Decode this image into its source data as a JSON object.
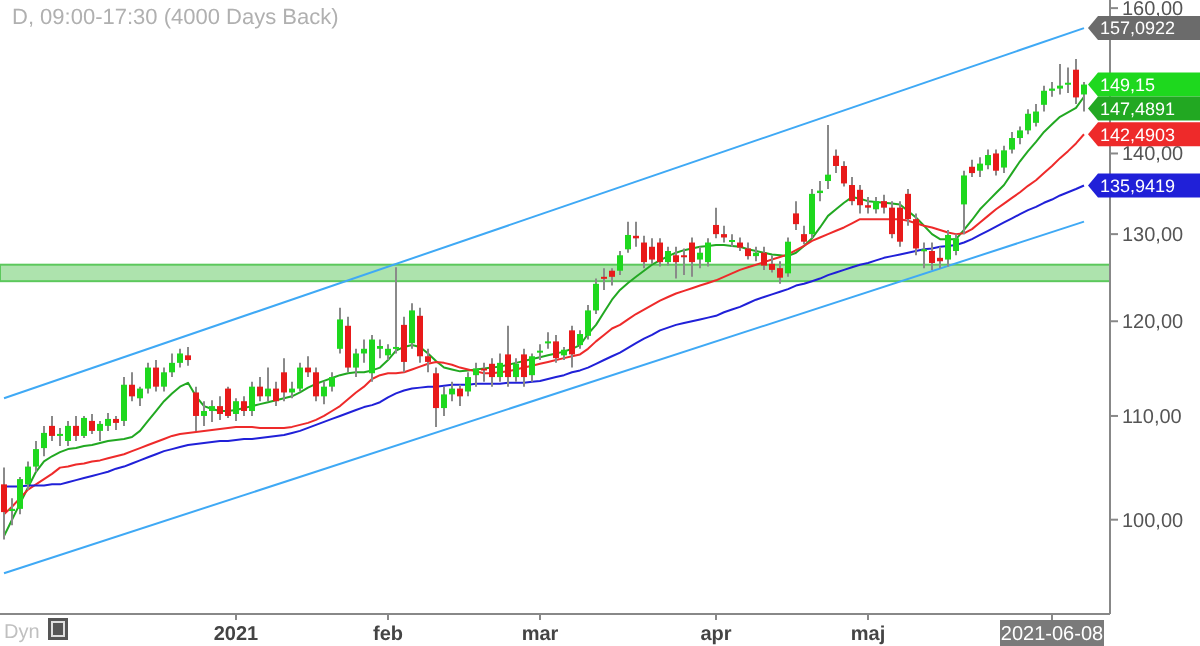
{
  "chart_data": {
    "type": "candlestick",
    "title": "D, 09:00-17:30 (4000 Days Back)",
    "categories": [
      null,
      null,
      null,
      null,
      null,
      null,
      null,
      null,
      null,
      null,
      null,
      null,
      null,
      null,
      null,
      null,
      null,
      null,
      null,
      null,
      null,
      null,
      null,
      null,
      null,
      null,
      null,
      null,
      null,
      "2021",
      null,
      null,
      null,
      null,
      null,
      null,
      null,
      null,
      null,
      null,
      null,
      null,
      null,
      null,
      null,
      null,
      null,
      null,
      "feb",
      null,
      null,
      null,
      null,
      null,
      null,
      null,
      null,
      null,
      null,
      null,
      null,
      null,
      null,
      null,
      null,
      null,
      null,
      "mar",
      null,
      null,
      null,
      null,
      null,
      null,
      null,
      null,
      null,
      null,
      null,
      null,
      null,
      null,
      null,
      null,
      null,
      null,
      null,
      null,
      null,
      "apr",
      null,
      null,
      null,
      null,
      null,
      null,
      null,
      null,
      null,
      null,
      null,
      null,
      null,
      null,
      null,
      null,
      null,
      null,
      "maj",
      null,
      null,
      null,
      null,
      null,
      null,
      null,
      null,
      null,
      null,
      null,
      null,
      null,
      null,
      null,
      null,
      null,
      null,
      null,
      null,
      null,
      null,
      "2021-06-08",
      null,
      null,
      null,
      null
    ],
    "ohlc": [
      [
        103.3,
        104.9,
        98.2,
        100.7
      ],
      [
        100.8,
        102.0,
        99.5,
        101.0
      ],
      [
        101.0,
        104.0,
        100.5,
        103.8
      ],
      [
        103.3,
        105.5,
        102.8,
        105.0
      ],
      [
        105.0,
        107.5,
        104.5,
        106.7
      ],
      [
        106.8,
        109.0,
        106.0,
        108.3
      ],
      [
        109.0,
        110.0,
        107.5,
        108.0
      ],
      [
        108.0,
        108.8,
        107.0,
        108.2
      ],
      [
        107.5,
        109.5,
        107.0,
        109.0
      ],
      [
        109.0,
        110.0,
        107.5,
        108.0
      ],
      [
        108.0,
        110.0,
        107.8,
        109.8
      ],
      [
        109.5,
        110.2,
        108.2,
        108.5
      ],
      [
        108.5,
        109.5,
        107.5,
        109.2
      ],
      [
        109.0,
        110.3,
        108.5,
        109.7
      ],
      [
        109.7,
        110.0,
        108.6,
        109.3
      ],
      [
        109.5,
        114.0,
        109.0,
        113.2
      ],
      [
        113.2,
        114.5,
        111.5,
        112.0
      ],
      [
        111.8,
        113.0,
        111.0,
        112.8
      ],
      [
        112.8,
        115.5,
        112.3,
        115.0
      ],
      [
        115.0,
        115.8,
        112.5,
        113.0
      ],
      [
        113.0,
        115.0,
        112.5,
        114.5
      ],
      [
        114.5,
        116.5,
        114.0,
        115.5
      ],
      [
        115.5,
        117.0,
        115.0,
        116.5
      ],
      [
        116.3,
        117.2,
        115.2,
        115.8
      ],
      [
        112.4,
        113.0,
        108.5,
        110.0
      ],
      [
        110.0,
        111.5,
        109.0,
        110.5
      ],
      [
        110.5,
        111.6,
        109.4,
        111.0
      ],
      [
        111.0,
        112.0,
        109.6,
        110.2
      ],
      [
        112.8,
        113.0,
        109.8,
        110.0
      ],
      [
        110.2,
        111.8,
        109.5,
        111.5
      ],
      [
        111.5,
        112.0,
        110.0,
        110.5
      ],
      [
        110.5,
        113.5,
        110.0,
        113.0
      ],
      [
        113.0,
        114.0,
        111.5,
        112.0
      ],
      [
        112.0,
        115.0,
        111.5,
        112.8
      ],
      [
        112.8,
        113.5,
        111.0,
        111.5
      ],
      [
        114.5,
        116.0,
        111.5,
        112.4
      ],
      [
        112.4,
        113.5,
        111.8,
        112.8
      ],
      [
        112.8,
        115.5,
        112.5,
        115.0
      ],
      [
        115.0,
        116.2,
        114.0,
        114.5
      ],
      [
        114.5,
        115.0,
        111.5,
        112.0
      ],
      [
        112.0,
        113.5,
        111.2,
        113.0
      ],
      [
        113.0,
        114.5,
        112.5,
        114.0
      ],
      [
        117.0,
        121.5,
        116.5,
        120.2
      ],
      [
        119.5,
        120.5,
        114.5,
        115.0
      ],
      [
        115.0,
        117.0,
        114.0,
        116.5
      ],
      [
        116.5,
        118.0,
        115.5,
        117.0
      ],
      [
        114.4,
        118.5,
        113.5,
        118.0
      ],
      [
        117.0,
        118.0,
        116.0,
        117.3
      ],
      [
        116.3,
        117.5,
        115.8,
        117.0
      ],
      [
        117.0,
        126.1,
        116.5,
        117.2
      ],
      [
        119.6,
        120.5,
        114.5,
        115.6
      ],
      [
        117.6,
        122.0,
        117.0,
        121.2
      ],
      [
        120.6,
        121.5,
        115.5,
        116.2
      ],
      [
        116.2,
        117.0,
        114.5,
        115.6
      ],
      [
        114.4,
        115.0,
        108.9,
        110.8
      ],
      [
        110.8,
        113.0,
        110.0,
        112.2
      ],
      [
        112.2,
        113.5,
        111.5,
        112.8
      ],
      [
        112.8,
        113.2,
        111.0,
        112.0
      ],
      [
        112.5,
        114.5,
        112.0,
        114.0
      ],
      [
        114.2,
        115.5,
        113.0,
        114.9
      ],
      [
        114.9,
        115.5,
        113.5,
        114.8
      ],
      [
        115.4,
        116.0,
        113.0,
        114.0
      ],
      [
        114.0,
        116.5,
        113.5,
        115.5
      ],
      [
        116.4,
        119.5,
        113.0,
        114.0
      ],
      [
        114.0,
        116.0,
        113.5,
        115.4
      ],
      [
        116.4,
        117.0,
        113.0,
        114.0
      ],
      [
        114.2,
        116.5,
        113.5,
        116.2
      ],
      [
        116.6,
        117.5,
        115.8,
        116.8
      ],
      [
        117.6,
        118.8,
        117.0,
        117.8
      ],
      [
        117.8,
        118.5,
        115.5,
        116.0
      ],
      [
        116.3,
        117.2,
        115.8,
        116.9
      ],
      [
        119.0,
        119.5,
        115.0,
        116.4
      ],
      [
        117.4,
        119.0,
        117.0,
        118.6
      ],
      [
        118.4,
        121.8,
        118.0,
        121.2
      ],
      [
        121.2,
        124.8,
        120.8,
        124.2
      ],
      [
        125.0,
        126.0,
        123.5,
        124.8
      ],
      [
        125.7,
        126.0,
        124.0,
        125.0
      ],
      [
        125.7,
        128.0,
        125.2,
        127.5
      ],
      [
        128.2,
        131.5,
        127.8,
        129.9
      ],
      [
        129.8,
        131.5,
        128.5,
        129.5
      ],
      [
        129.0,
        129.8,
        126.0,
        126.7
      ],
      [
        128.5,
        129.5,
        126.5,
        127.0
      ],
      [
        129.0,
        129.5,
        126.2,
        126.7
      ],
      [
        126.7,
        128.5,
        126.3,
        128.0
      ],
      [
        127.5,
        128.5,
        124.8,
        126.7
      ],
      [
        127.5,
        128.3,
        125.2,
        127.4
      ],
      [
        129.0,
        129.6,
        125.0,
        126.7
      ],
      [
        127.0,
        128.5,
        126.0,
        127.8
      ],
      [
        126.7,
        129.5,
        126.2,
        129.0
      ],
      [
        131.1,
        133.2,
        129.5,
        130.0
      ],
      [
        130.0,
        131.0,
        129.0,
        129.6
      ],
      [
        129.2,
        130.0,
        128.5,
        129.3
      ],
      [
        129.0,
        129.6,
        128.0,
        128.4
      ],
      [
        128.3,
        129.0,
        127.0,
        127.4
      ],
      [
        127.4,
        128.5,
        126.8,
        127.8
      ],
      [
        127.8,
        128.5,
        125.8,
        126.3
      ],
      [
        126.5,
        127.5,
        125.5,
        125.8
      ],
      [
        126.0,
        126.8,
        124.2,
        124.9
      ],
      [
        125.4,
        129.6,
        125.0,
        129.1
      ],
      [
        132.5,
        134.0,
        130.5,
        131.2
      ],
      [
        130.0,
        131.0,
        128.8,
        129.1
      ],
      [
        130.0,
        135.5,
        129.5,
        134.9
      ],
      [
        135.0,
        136.5,
        134.0,
        135.3
      ],
      [
        136.5,
        143.7,
        135.5,
        137.3
      ],
      [
        139.7,
        140.5,
        137.5,
        138.4
      ],
      [
        138.4,
        139.0,
        135.8,
        136.2
      ],
      [
        136.0,
        137.0,
        133.5,
        134.0
      ],
      [
        135.4,
        136.0,
        132.5,
        133.5
      ],
      [
        133.5,
        134.5,
        132.5,
        133.2
      ],
      [
        133.0,
        134.5,
        132.5,
        134.0
      ],
      [
        134.0,
        134.8,
        132.5,
        133.2
      ],
      [
        133.2,
        134.0,
        129.5,
        130.0
      ],
      [
        133.2,
        134.0,
        128.5,
        129.1
      ],
      [
        134.9,
        135.5,
        131.0,
        131.8
      ],
      [
        131.8,
        132.5,
        127.5,
        128.3
      ],
      [
        128.0,
        129.0,
        126.0,
        128.2
      ],
      [
        128.0,
        129.0,
        125.8,
        126.6
      ],
      [
        127.2,
        128.5,
        126.0,
        126.8
      ],
      [
        127.0,
        130.5,
        126.2,
        129.9
      ],
      [
        128.0,
        130.0,
        127.5,
        129.5
      ],
      [
        133.6,
        137.8,
        130.0,
        137.2
      ],
      [
        138.3,
        139.2,
        137.0,
        137.5
      ],
      [
        137.8,
        139.5,
        137.0,
        138.7
      ],
      [
        138.5,
        140.5,
        138.0,
        139.8
      ],
      [
        140.0,
        140.5,
        137.2,
        137.8
      ],
      [
        138.2,
        141.0,
        137.5,
        140.4
      ],
      [
        140.5,
        142.8,
        140.0,
        142.0
      ],
      [
        142.0,
        143.5,
        141.2,
        143.0
      ],
      [
        143.0,
        145.8,
        142.5,
        145.2
      ],
      [
        144.0,
        146.5,
        143.5,
        145.5
      ],
      [
        146.4,
        149.0,
        145.5,
        148.3
      ],
      [
        148.3,
        149.5,
        147.5,
        148.6
      ],
      [
        148.6,
        152.0,
        147.8,
        149.0
      ],
      [
        149.2,
        151.5,
        148.0,
        149.4
      ],
      [
        151.2,
        152.7,
        146.5,
        147.4
      ],
      [
        147.8,
        149.5,
        145.5,
        149.15
      ]
    ],
    "value_labels": [
      null,
      null,
      null,
      null,
      null,
      null,
      null,
      null,
      null,
      null,
      null,
      null,
      null,
      null,
      null,
      null,
      null,
      null,
      null,
      null,
      null,
      null,
      null,
      null,
      null,
      null,
      null,
      null,
      null,
      null,
      null,
      null,
      null,
      null,
      null,
      null,
      null,
      null,
      null,
      null,
      null,
      null,
      null,
      null,
      null,
      null,
      null,
      null,
      null,
      null,
      null,
      null,
      null,
      null,
      null,
      null,
      null,
      null,
      null,
      null,
      null,
      null,
      null,
      null,
      null,
      null,
      null,
      null,
      null,
      null,
      null,
      null,
      null,
      null,
      null,
      null,
      null,
      null,
      null,
      null,
      null,
      null,
      null,
      null,
      null,
      null,
      null,
      null,
      null,
      null,
      null,
      null,
      null,
      null,
      null,
      null,
      null,
      null,
      null,
      null,
      null,
      null,
      null,
      null,
      null,
      null,
      null,
      null,
      null,
      null,
      null,
      null,
      null,
      null,
      null,
      null,
      null,
      null,
      null,
      null,
      null,
      null,
      null,
      null,
      null,
      null,
      null,
      null,
      null,
      null,
      null,
      null,
      null,
      null,
      null,
      "149,15"
    ],
    "series": [
      {
        "type": "line",
        "color": "#22a822",
        "values": [
          98.5,
          100.0,
          101.5,
          103.0,
          104.5,
          105.5,
          106.0,
          106.4,
          106.7,
          106.8,
          107.0,
          107.1,
          107.3,
          107.5,
          107.6,
          107.7,
          107.9,
          108.5,
          109.5,
          110.5,
          111.5,
          112.3,
          113.0,
          113.4,
          112.0,
          111.0,
          110.7,
          110.5,
          110.5,
          110.6,
          110.8,
          111.0,
          111.2,
          111.4,
          111.6,
          111.8,
          112.0,
          112.4,
          112.9,
          113.3,
          113.6,
          113.9,
          114.2,
          114.4,
          114.5,
          114.5,
          114.7,
          115.0,
          115.8,
          116.8,
          117.2,
          117.4,
          117.2,
          116.5,
          115.7,
          115.0,
          114.8,
          114.6,
          114.7,
          114.8,
          114.9,
          115.0,
          115.1,
          115.3,
          115.5,
          115.7,
          115.9,
          116.1,
          116.3,
          116.5,
          116.7,
          117.0,
          117.4,
          118.6,
          119.6,
          121.0,
          122.4,
          123.5,
          124.3,
          125.0,
          125.7,
          126.4,
          126.9,
          127.4,
          127.8,
          128.1,
          128.3,
          128.5,
          128.6,
          128.7,
          128.7,
          128.6,
          128.5,
          128.2,
          128.0,
          127.8,
          127.6,
          127.5,
          127.4,
          127.8,
          128.6,
          129.5,
          130.8,
          132.2,
          133.0,
          133.8,
          134.5,
          134.3,
          134.0,
          133.9,
          133.8,
          133.7,
          133.6,
          132.8,
          132.0,
          131.0,
          130.0,
          129.4,
          129.4,
          129.4,
          130.5,
          131.7,
          133.0,
          134.0,
          135.0,
          136.0,
          137.5,
          139.0,
          140.3,
          141.5,
          142.8,
          143.8,
          144.8,
          145.4,
          146.0,
          147.4891
        ],
        "value_labels": [
          null,
          null,
          null,
          null,
          null,
          null,
          null,
          null,
          null,
          null,
          null,
          null,
          null,
          null,
          null,
          null,
          null,
          null,
          null,
          null,
          null,
          null,
          null,
          null,
          null,
          null,
          null,
          null,
          null,
          null,
          null,
          null,
          null,
          null,
          null,
          null,
          null,
          null,
          null,
          null,
          null,
          null,
          null,
          null,
          null,
          null,
          null,
          null,
          null,
          null,
          null,
          null,
          null,
          null,
          null,
          null,
          null,
          null,
          null,
          null,
          null,
          null,
          null,
          null,
          null,
          null,
          null,
          null,
          null,
          null,
          null,
          null,
          null,
          null,
          null,
          null,
          null,
          null,
          null,
          null,
          null,
          null,
          null,
          null,
          null,
          null,
          null,
          null,
          null,
          null,
          null,
          null,
          null,
          null,
          null,
          null,
          null,
          null,
          null,
          null,
          null,
          null,
          null,
          null,
          null,
          null,
          null,
          null,
          null,
          null,
          null,
          null,
          null,
          null,
          null,
          null,
          null,
          null,
          null,
          null,
          null,
          null,
          null,
          null,
          null,
          null,
          null,
          null,
          null,
          null,
          null,
          null,
          null,
          null,
          null,
          "147,4891"
        ]
      },
      {
        "type": "line",
        "color": "#ee2a2a",
        "values": [
          100.5,
          101.2,
          102.0,
          102.8,
          103.3,
          103.8,
          104.3,
          104.9,
          105.0,
          105.2,
          105.3,
          105.5,
          105.6,
          105.8,
          106.0,
          106.2,
          106.5,
          106.8,
          107.1,
          107.4,
          107.7,
          108.0,
          108.2,
          108.3,
          108.4,
          108.5,
          108.6,
          108.7,
          108.8,
          108.9,
          108.9,
          108.9,
          108.8,
          108.8,
          108.8,
          108.8,
          108.9,
          109.1,
          109.3,
          109.6,
          110.0,
          110.5,
          111.0,
          111.7,
          112.4,
          113.0,
          113.8,
          114.2,
          114.4,
          114.4,
          114.5,
          114.8,
          115.1,
          115.4,
          115.6,
          115.5,
          115.3,
          115.0,
          114.8,
          114.6,
          114.4,
          114.4,
          114.5,
          114.6,
          114.8,
          115.0,
          115.2,
          115.4,
          115.6,
          115.8,
          116.0,
          116.2,
          116.4,
          117.0,
          117.8,
          118.5,
          119.2,
          119.6,
          120.2,
          120.8,
          121.3,
          121.8,
          122.3,
          122.7,
          123.1,
          123.4,
          123.7,
          124.0,
          124.3,
          124.6,
          125.0,
          125.4,
          125.8,
          126.1,
          126.4,
          126.7,
          127.0,
          127.3,
          127.6,
          128.1,
          128.6,
          129.2,
          129.6,
          130.0,
          130.4,
          130.8,
          131.3,
          131.8,
          131.8,
          131.8,
          131.8,
          131.8,
          131.8,
          131.6,
          131.3,
          131.0,
          130.8,
          130.5,
          130.2,
          130.0,
          130.1,
          130.6,
          131.4,
          132.2,
          133.0,
          133.7,
          134.4,
          135.1,
          135.9,
          136.6,
          137.5,
          138.4,
          139.4,
          140.3,
          141.3,
          142.4903
        ],
        "value_labels": [
          null,
          null,
          null,
          null,
          null,
          null,
          null,
          null,
          null,
          null,
          null,
          null,
          null,
          null,
          null,
          null,
          null,
          null,
          null,
          null,
          null,
          null,
          null,
          null,
          null,
          null,
          null,
          null,
          null,
          null,
          null,
          null,
          null,
          null,
          null,
          null,
          null,
          null,
          null,
          null,
          null,
          null,
          null,
          null,
          null,
          null,
          null,
          null,
          null,
          null,
          null,
          null,
          null,
          null,
          null,
          null,
          null,
          null,
          null,
          null,
          null,
          null,
          null,
          null,
          null,
          null,
          null,
          null,
          null,
          null,
          null,
          null,
          null,
          null,
          null,
          null,
          null,
          null,
          null,
          null,
          null,
          null,
          null,
          null,
          null,
          null,
          null,
          null,
          null,
          null,
          null,
          null,
          null,
          null,
          null,
          null,
          null,
          null,
          null,
          null,
          null,
          null,
          null,
          null,
          null,
          null,
          null,
          null,
          null,
          null,
          null,
          null,
          null,
          null,
          null,
          null,
          null,
          null,
          null,
          null,
          null,
          null,
          null,
          null,
          null,
          null,
          null,
          null,
          null,
          null,
          null,
          null,
          null,
          null,
          null,
          "142,4903"
        ]
      },
      {
        "type": "line",
        "color": "#2020d8",
        "values": [
          103.1,
          103.1,
          103.1,
          103.2,
          103.2,
          103.2,
          103.3,
          103.3,
          103.5,
          103.7,
          103.9,
          104.1,
          104.3,
          104.5,
          104.8,
          105.0,
          105.3,
          105.6,
          105.9,
          106.2,
          106.5,
          106.7,
          106.9,
          107.1,
          107.2,
          107.3,
          107.4,
          107.5,
          107.5,
          107.6,
          107.7,
          107.7,
          107.8,
          107.9,
          108.0,
          108.1,
          108.3,
          108.5,
          108.8,
          109.1,
          109.4,
          109.7,
          110.0,
          110.3,
          110.6,
          110.9,
          111.1,
          111.4,
          111.9,
          112.3,
          112.6,
          112.8,
          112.9,
          113.0,
          113.0,
          113.1,
          113.2,
          113.2,
          113.2,
          113.3,
          113.3,
          113.3,
          113.3,
          113.4,
          113.4,
          113.4,
          113.5,
          113.6,
          113.8,
          114.0,
          114.2,
          114.5,
          114.7,
          115.0,
          115.4,
          115.8,
          116.2,
          116.6,
          117.1,
          117.6,
          118.1,
          118.5,
          119.0,
          119.3,
          119.6,
          119.8,
          120.0,
          120.2,
          120.4,
          120.6,
          121.0,
          121.3,
          121.6,
          122.0,
          122.4,
          122.7,
          123.0,
          123.3,
          123.6,
          124.0,
          124.2,
          124.5,
          124.8,
          125.2,
          125.5,
          125.8,
          126.1,
          126.4,
          126.6,
          126.9,
          127.2,
          127.4,
          127.6,
          127.8,
          128.0,
          128.2,
          128.3,
          128.5,
          128.6,
          128.7,
          129.0,
          129.4,
          129.9,
          130.4,
          130.9,
          131.4,
          131.9,
          132.4,
          132.9,
          133.3,
          133.8,
          134.2,
          134.7,
          135.1,
          135.5,
          135.9419
        ],
        "value_labels": [
          null,
          null,
          null,
          null,
          null,
          null,
          null,
          null,
          null,
          null,
          null,
          null,
          null,
          null,
          null,
          null,
          null,
          null,
          null,
          null,
          null,
          null,
          null,
          null,
          null,
          null,
          null,
          null,
          null,
          null,
          null,
          null,
          null,
          null,
          null,
          null,
          null,
          null,
          null,
          null,
          null,
          null,
          null,
          null,
          null,
          null,
          null,
          null,
          null,
          null,
          null,
          null,
          null,
          null,
          null,
          null,
          null,
          null,
          null,
          null,
          null,
          null,
          null,
          null,
          null,
          null,
          null,
          null,
          null,
          null,
          null,
          null,
          null,
          null,
          null,
          null,
          null,
          null,
          null,
          null,
          null,
          null,
          null,
          null,
          null,
          null,
          null,
          null,
          null,
          null,
          null,
          null,
          null,
          null,
          null,
          null,
          null,
          null,
          null,
          null,
          null,
          null,
          null,
          null,
          null,
          null,
          null,
          null,
          null,
          null,
          null,
          null,
          null,
          null,
          null,
          null,
          null,
          null,
          null,
          null,
          null,
          null,
          null,
          null,
          null,
          null,
          null,
          null,
          null,
          null,
          null,
          null,
          null,
          null,
          null,
          "135,9419"
        ]
      },
      {
        "type": "line",
        "color": "#3fa9f5",
        "values": [
          111.8,
          null,
          null,
          null,
          null,
          null,
          null,
          null,
          null,
          null,
          null,
          null,
          null,
          null,
          null,
          null,
          null,
          null,
          null,
          null,
          null,
          null,
          null,
          null,
          null,
          null,
          null,
          null,
          null,
          null,
          null,
          null,
          null,
          null,
          null,
          null,
          null,
          null,
          null,
          null,
          null,
          null,
          null,
          null,
          null,
          null,
          null,
          null,
          null,
          null,
          null,
          null,
          null,
          null,
          null,
          null,
          null,
          null,
          null,
          null,
          null,
          null,
          null,
          null,
          null,
          null,
          null,
          null,
          null,
          null,
          null,
          null,
          null,
          null,
          null,
          null,
          null,
          null,
          null,
          null,
          null,
          null,
          null,
          null,
          null,
          null,
          null,
          null,
          null,
          null,
          null,
          null,
          null,
          null,
          null,
          null,
          null,
          null,
          null,
          null,
          null,
          null,
          null,
          null,
          null,
          null,
          null,
          null,
          null,
          null,
          null,
          null,
          null,
          null,
          null,
          null,
          null,
          null,
          null,
          null,
          null,
          null,
          null,
          null,
          null,
          null,
          null,
          null,
          null,
          null,
          null,
          null,
          null,
          null,
          null,
          157.0922
        ],
        "value_labels": [
          null,
          null,
          null,
          null,
          null,
          null,
          null,
          null,
          null,
          null,
          null,
          null,
          null,
          null,
          null,
          null,
          null,
          null,
          null,
          null,
          null,
          null,
          null,
          null,
          null,
          null,
          null,
          null,
          null,
          null,
          null,
          null,
          null,
          null,
          null,
          null,
          null,
          null,
          null,
          null,
          null,
          null,
          null,
          null,
          null,
          null,
          null,
          null,
          null,
          null,
          null,
          null,
          null,
          null,
          null,
          null,
          null,
          null,
          null,
          null,
          null,
          null,
          null,
          null,
          null,
          null,
          null,
          null,
          null,
          null,
          null,
          null,
          null,
          null,
          null,
          null,
          null,
          null,
          null,
          null,
          null,
          null,
          null,
          null,
          null,
          null,
          null,
          null,
          null,
          null,
          null,
          null,
          null,
          null,
          null,
          null,
          null,
          null,
          null,
          null,
          null,
          null,
          null,
          null,
          null,
          null,
          null,
          null,
          null,
          null,
          null,
          null,
          null,
          null,
          null,
          null,
          null,
          null,
          null,
          null,
          null,
          null,
          null,
          null,
          null,
          null,
          null,
          null,
          null,
          null,
          null,
          null,
          null,
          null,
          null,
          "157,0922"
        ]
      },
      {
        "type": "line",
        "color": "#3fa9f5",
        "values": [
          95.2,
          null,
          null,
          null,
          null,
          null,
          null,
          null,
          null,
          null,
          null,
          null,
          null,
          null,
          null,
          null,
          null,
          null,
          null,
          null,
          null,
          null,
          null,
          null,
          null,
          null,
          null,
          null,
          null,
          null,
          null,
          null,
          null,
          null,
          null,
          null,
          null,
          null,
          null,
          null,
          null,
          null,
          null,
          null,
          null,
          null,
          null,
          null,
          null,
          null,
          null,
          null,
          null,
          null,
          null,
          null,
          null,
          null,
          null,
          null,
          null,
          null,
          null,
          null,
          null,
          null,
          null,
          null,
          null,
          null,
          null,
          null,
          null,
          null,
          null,
          null,
          null,
          null,
          null,
          null,
          null,
          null,
          null,
          null,
          null,
          null,
          null,
          null,
          null,
          null,
          null,
          null,
          null,
          null,
          null,
          null,
          null,
          null,
          null,
          null,
          null,
          null,
          null,
          null,
          null,
          null,
          null,
          null,
          null,
          null,
          null,
          null,
          null,
          null,
          null,
          null,
          null,
          null,
          null,
          null,
          null,
          null,
          null,
          null,
          null,
          null,
          null,
          null,
          null,
          null,
          null,
          null,
          null,
          null,
          null,
          131.5
        ]
      }
    ],
    "ylim": [
      91.7,
      161.2
    ],
    "yticks": [
      {
        "value": 100,
        "label": "100,00"
      },
      {
        "value": 110,
        "label": "110,00"
      },
      {
        "value": 120,
        "label": "120,00"
      },
      {
        "value": 130,
        "label": "130,00"
      },
      {
        "value": 140,
        "label": "140,00"
      },
      {
        "value": 150,
        "label": null
      },
      {
        "value": 160,
        "label": "160,00"
      }
    ],
    "log": true,
    "bands": [
      {
        "axis": "y",
        "from": 124.5,
        "to": 126.4,
        "color": "#5cc85c"
      }
    ],
    "annotations": [
      "Dyn"
    ]
  }
}
